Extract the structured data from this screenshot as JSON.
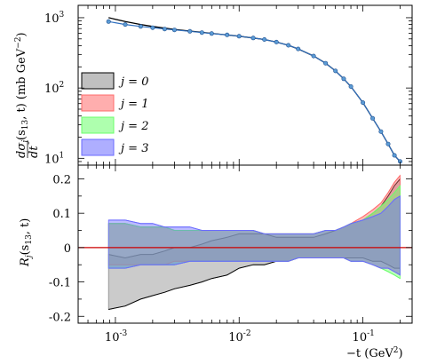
{
  "chart_data": [
    {
      "type": "line",
      "panel": "top",
      "xscale": "log",
      "yscale": "log",
      "xlim": [
        0.0005,
        0.25
      ],
      "ylim": [
        8,
        1500
      ],
      "ylabel_text": "dσ_j/dt(s13, t) (mb GeV⁻²)",
      "ylabel_parts": {
        "num": "dσ",
        "sub_j": "j",
        "den": "dt",
        "args": "(s",
        "sub_13": "13",
        "args2": ", t) (mb GeV",
        "sup": "−2",
        "close": ")"
      },
      "yticks": [
        {
          "label": "10",
          "exp": "1",
          "value": 10
        },
        {
          "label": "10",
          "exp": "2",
          "value": 100
        },
        {
          "label": "10",
          "exp": "3",
          "value": 1000
        }
      ],
      "legend": {
        "placement": "lower-left",
        "entries": [
          {
            "label": "j = 0",
            "color": "#8c8c8c"
          },
          {
            "label": "j = 1",
            "color": "#ff6b6b"
          },
          {
            "label": "j = 2",
            "color": "#6bff6b"
          },
          {
            "label": "j = 3",
            "color": "#6b6bff"
          }
        ]
      },
      "series": [
        {
          "kind": "data-points",
          "color": "#5b9bd5",
          "x": [
            0.00088,
            0.0012,
            0.0016,
            0.002,
            0.0025,
            0.003,
            0.004,
            0.005,
            0.006,
            0.008,
            0.01,
            0.013,
            0.016,
            0.02,
            0.025,
            0.03,
            0.04,
            0.05,
            0.06,
            0.07,
            0.08,
            0.1,
            0.12,
            0.14,
            0.16,
            0.18,
            0.2
          ],
          "y": [
            880,
            800,
            750,
            720,
            690,
            670,
            640,
            615,
            595,
            570,
            545,
            515,
            490,
            450,
            405,
            360,
            285,
            225,
            175,
            135,
            105,
            62,
            37,
            24,
            16,
            11,
            9
          ]
        },
        {
          "kind": "model-curve",
          "color": "#000000",
          "x": [
            0.00088,
            0.0012,
            0.0016,
            0.002,
            0.0025,
            0.003,
            0.004,
            0.005,
            0.006,
            0.008,
            0.01,
            0.013,
            0.016,
            0.02,
            0.025,
            0.03,
            0.04,
            0.05,
            0.06,
            0.07,
            0.08,
            0.1,
            0.12,
            0.14,
            0.16,
            0.18,
            0.2
          ],
          "y": [
            1000,
            880,
            800,
            750,
            710,
            680,
            645,
            620,
            598,
            570,
            545,
            515,
            490,
            450,
            405,
            360,
            285,
            225,
            175,
            135,
            105,
            62,
            37,
            24,
            16,
            11,
            9
          ]
        }
      ]
    },
    {
      "type": "area",
      "panel": "bottom",
      "xscale": "log",
      "xlim": [
        0.0005,
        0.25
      ],
      "ylim": [
        -0.22,
        0.24
      ],
      "ylabel_parts": {
        "main": "R",
        "sub": "j",
        "args": "(s",
        "sub_13": "13",
        "args2": ", t)"
      },
      "xlabel_parts": {
        "main": "−t (GeV",
        "sup": "2",
        "close": ")"
      },
      "xticks": [
        {
          "label": "10",
          "exp": "-3",
          "value": 0.001
        },
        {
          "label": "10",
          "exp": "-2",
          "value": 0.01
        },
        {
          "label": "10",
          "exp": "-1",
          "value": 0.1
        }
      ],
      "yticks": [
        {
          "label": "-0.2",
          "value": -0.2
        },
        {
          "label": "-0.1",
          "value": -0.1
        },
        {
          "label": "0",
          "value": 0
        },
        {
          "label": "0.1",
          "value": 0.1
        },
        {
          "label": "0.2",
          "value": 0.2
        }
      ],
      "reference_line": {
        "y": 0,
        "color": "#cc0000"
      },
      "x": [
        0.00088,
        0.0012,
        0.0016,
        0.002,
        0.0025,
        0.003,
        0.004,
        0.005,
        0.006,
        0.008,
        0.01,
        0.013,
        0.016,
        0.02,
        0.025,
        0.03,
        0.04,
        0.05,
        0.06,
        0.07,
        0.08,
        0.1,
        0.12,
        0.14,
        0.16,
        0.18,
        0.2
      ],
      "series": [
        {
          "name": "j = 0",
          "color": "#8c8c8c",
          "upper": [
            -0.02,
            -0.03,
            -0.02,
            -0.02,
            -0.01,
            0.0,
            0.0,
            0.01,
            0.02,
            0.03,
            0.04,
            0.04,
            0.04,
            0.03,
            0.03,
            0.03,
            0.03,
            0.04,
            0.05,
            0.06,
            0.07,
            0.08,
            0.1,
            0.12,
            0.15,
            0.18,
            0.2
          ],
          "lower": [
            -0.18,
            -0.17,
            -0.15,
            -0.14,
            -0.13,
            -0.12,
            -0.11,
            -0.1,
            -0.09,
            -0.08,
            -0.06,
            -0.05,
            -0.05,
            -0.04,
            -0.04,
            -0.03,
            -0.03,
            -0.03,
            -0.03,
            -0.03,
            -0.03,
            -0.03,
            -0.04,
            -0.04,
            -0.05,
            -0.06,
            -0.06
          ]
        },
        {
          "name": "j = 1",
          "color": "#ff6b6b",
          "upper": [
            0.07,
            0.07,
            0.06,
            0.06,
            0.06,
            0.05,
            0.05,
            0.05,
            0.05,
            0.05,
            0.05,
            0.05,
            0.04,
            0.04,
            0.04,
            0.04,
            0.04,
            0.05,
            0.05,
            0.06,
            0.07,
            0.09,
            0.11,
            0.13,
            0.16,
            0.19,
            0.21
          ],
          "lower": [
            -0.05,
            -0.05,
            -0.05,
            -0.05,
            -0.05,
            -0.04,
            -0.04,
            -0.04,
            -0.04,
            -0.04,
            -0.04,
            -0.04,
            -0.04,
            -0.04,
            -0.04,
            -0.03,
            -0.03,
            -0.03,
            -0.03,
            -0.03,
            -0.04,
            -0.04,
            -0.05,
            -0.06,
            -0.06,
            -0.07,
            -0.08
          ]
        },
        {
          "name": "j = 2",
          "color": "#6bff6b",
          "upper": [
            0.07,
            0.07,
            0.06,
            0.06,
            0.06,
            0.05,
            0.05,
            0.05,
            0.05,
            0.05,
            0.05,
            0.05,
            0.04,
            0.04,
            0.04,
            0.04,
            0.04,
            0.05,
            0.05,
            0.06,
            0.07,
            0.08,
            0.1,
            0.12,
            0.14,
            0.16,
            0.18
          ],
          "lower": [
            -0.06,
            -0.06,
            -0.05,
            -0.05,
            -0.05,
            -0.05,
            -0.04,
            -0.04,
            -0.04,
            -0.04,
            -0.04,
            -0.04,
            -0.04,
            -0.04,
            -0.04,
            -0.03,
            -0.03,
            -0.03,
            -0.03,
            -0.03,
            -0.04,
            -0.04,
            -0.05,
            -0.06,
            -0.07,
            -0.08,
            -0.09
          ]
        },
        {
          "name": "j = 3",
          "color": "#6b6bff",
          "upper": [
            0.08,
            0.08,
            0.07,
            0.07,
            0.06,
            0.06,
            0.06,
            0.05,
            0.05,
            0.05,
            0.05,
            0.05,
            0.04,
            0.04,
            0.04,
            0.04,
            0.04,
            0.05,
            0.05,
            0.06,
            0.07,
            0.08,
            0.09,
            0.1,
            0.12,
            0.14,
            0.15
          ],
          "lower": [
            -0.06,
            -0.06,
            -0.05,
            -0.05,
            -0.05,
            -0.05,
            -0.04,
            -0.04,
            -0.04,
            -0.04,
            -0.04,
            -0.04,
            -0.04,
            -0.04,
            -0.04,
            -0.03,
            -0.03,
            -0.03,
            -0.03,
            -0.03,
            -0.04,
            -0.04,
            -0.05,
            -0.06,
            -0.06,
            -0.07,
            -0.08
          ]
        }
      ]
    }
  ]
}
